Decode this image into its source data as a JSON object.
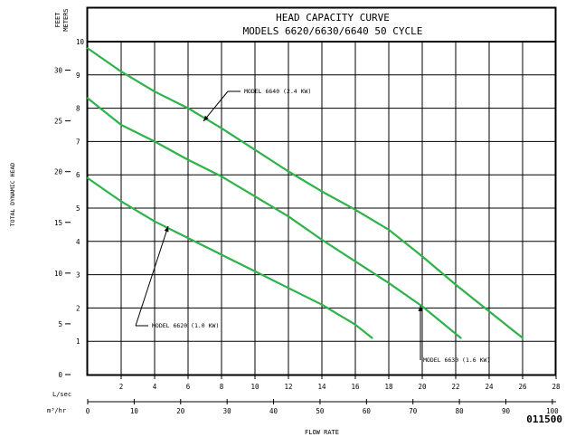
{
  "chart_data": {
    "type": "line",
    "title_line1": "HEAD CAPACITY CURVE",
    "title_line2": "MODELS 6620/6630/6640  50 CYCLE",
    "ylabel": "TOTAL DYNAMIC HEAD",
    "xlabel": "FLOW RATE",
    "y_units_feet": "FEET",
    "y_units_meters": "METERS",
    "x_units_lsec": "L/sec",
    "x_units_m3hr": "m³/hr",
    "figure_number": "011500",
    "x_lsec_ticks": [
      "2",
      "4",
      "6",
      "8",
      "10",
      "12",
      "14",
      "16",
      "18",
      "20",
      "22",
      "24",
      "26",
      "28"
    ],
    "x_m3hr_ticks": [
      "0",
      "10",
      "20",
      "30",
      "40",
      "50",
      "60",
      "70",
      "80",
      "90",
      "100"
    ],
    "y_meters_ticks": [
      "1",
      "2",
      "3",
      "4",
      "5",
      "6",
      "7",
      "8",
      "9",
      "10"
    ],
    "y_feet_ticks": [
      "0",
      "5",
      "10",
      "15",
      "20",
      "25",
      "30"
    ],
    "xlim_lsec": [
      0,
      28
    ],
    "ylim_meters": [
      0,
      10
    ],
    "grid": true,
    "series": [
      {
        "name": "MODEL 6620 (1.0 KW)",
        "color": "#2eb24a",
        "x": [
          0,
          2,
          4,
          6,
          8,
          10,
          12,
          14,
          16,
          17
        ],
        "y": [
          5.9,
          5.2,
          4.6,
          4.1,
          3.6,
          3.1,
          2.6,
          2.1,
          1.5,
          1.1
        ]
      },
      {
        "name": "MODEL 6630 (1.6 KW)",
        "color": "#2eb24a",
        "x": [
          0,
          2,
          4,
          6,
          8,
          10,
          12,
          14,
          16,
          18,
          20,
          22.3
        ],
        "y": [
          8.3,
          7.5,
          7.0,
          6.45,
          5.95,
          5.35,
          4.75,
          4.05,
          3.4,
          2.75,
          2.05,
          1.1
        ]
      },
      {
        "name": "MODEL 6640 (2.4 KW)",
        "color": "#2eb24a",
        "x": [
          0,
          2,
          4,
          6,
          8,
          10,
          12,
          14,
          16,
          18,
          20,
          22,
          24,
          26
        ],
        "y": [
          9.8,
          9.1,
          8.5,
          8.0,
          7.4,
          6.75,
          6.1,
          5.5,
          4.95,
          4.35,
          3.55,
          2.7,
          1.9,
          1.1
        ]
      }
    ]
  }
}
